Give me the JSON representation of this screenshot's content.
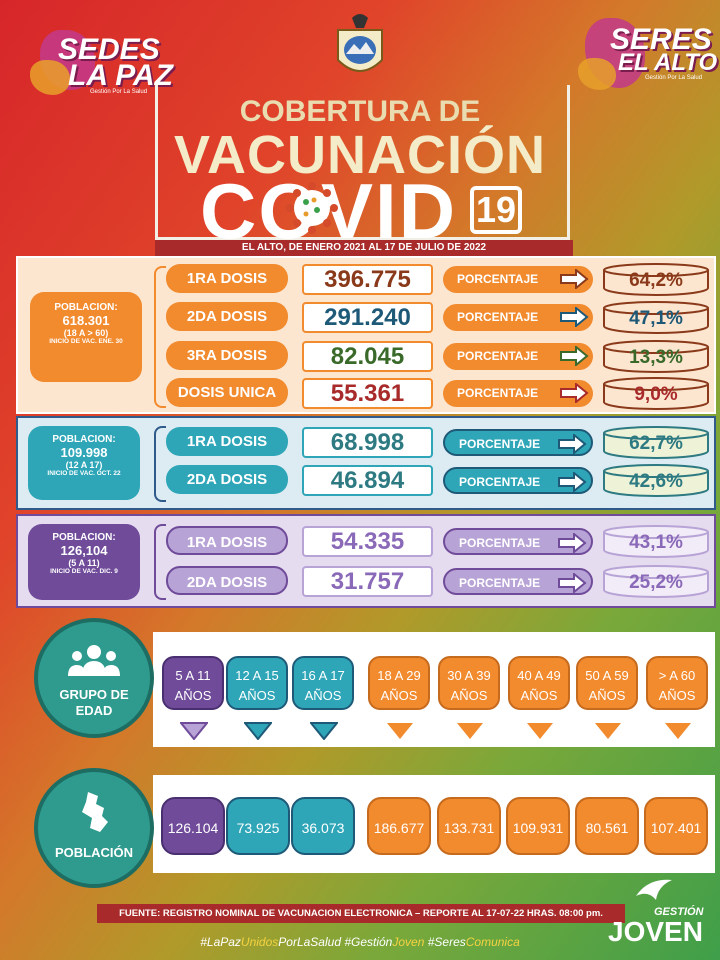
{
  "header": {
    "logo_left_line1": "SEDES",
    "logo_left_line2": "LA PAZ",
    "logo_left_sub": "Gestión Por La Salud",
    "logo_right_line1": "SERES",
    "logo_right_line2": "EL ALTO",
    "logo_right_sub": "Gestión Por La Salud"
  },
  "title": {
    "line1": "COBERTURA DE",
    "line2": "VACUNACIÓN",
    "line3": "COVID",
    "badge": "19",
    "subtitle": "EL ALTO, DE ENERO 2021 AL 17 DE JULIO DE 2022"
  },
  "groups": [
    {
      "pop_label": "POBLACION:",
      "pop_value": "618.301",
      "pop_range": "(18 A > 60)",
      "pop_start": "INICIO DE VAC. ENE. 30",
      "rows": [
        {
          "dose": "1RA DOSIS",
          "value": "396.775",
          "pct_label": "PORCENTAJE",
          "pct": "64,2%"
        },
        {
          "dose": "2DA DOSIS",
          "value": "291.240",
          "pct_label": "PORCENTAJE",
          "pct": "47,1%"
        },
        {
          "dose": "3RA DOSIS",
          "value": "82.045",
          "pct_label": "PORCENTAJE",
          "pct": "13,3%"
        },
        {
          "dose": "DOSIS UNICA",
          "value": "55.361",
          "pct_label": "PORCENTAJE",
          "pct": "9,0%"
        }
      ]
    },
    {
      "pop_label": "POBLACION:",
      "pop_value": "109.998",
      "pop_range": "(12 A 17)",
      "pop_start": "INICIO DE VAC. OCT. 22",
      "rows": [
        {
          "dose": "1RA DOSIS",
          "value": "68.998",
          "pct_label": "PORCENTAJE",
          "pct": "62,7%"
        },
        {
          "dose": "2DA DOSIS",
          "value": "46.894",
          "pct_label": "PORCENTAJE",
          "pct": "42,6%"
        }
      ]
    },
    {
      "pop_label": "POBLACION:",
      "pop_value": "126,104",
      "pop_range": "(5 A 11)",
      "pop_start": "INICIO DE VAC. DIC. 9",
      "rows": [
        {
          "dose": "1RA DOSIS",
          "value": "54.335",
          "pct_label": "PORCENTAJE",
          "pct": "43,1%"
        },
        {
          "dose": "2DA DOSIS",
          "value": "31.757",
          "pct_label": "PORCENTAJE",
          "pct": "25,2%"
        }
      ]
    }
  ],
  "age_groups": {
    "title_line1": "GRUPO DE",
    "title_line2": "EDAD",
    "items": [
      {
        "line1": "5 A 11",
        "line2": "AÑOS"
      },
      {
        "line1": "12 A 15",
        "line2": "AÑOS"
      },
      {
        "line1": "16 A 17",
        "line2": "AÑOS"
      },
      {
        "line1": "18 A 29",
        "line2": "AÑOS"
      },
      {
        "line1": "30 A 39",
        "line2": "AÑOS"
      },
      {
        "line1": "40 A 49",
        "line2": "AÑOS"
      },
      {
        "line1": "50 A 59",
        "line2": "AÑOS"
      },
      {
        "line1": "> A 60",
        "line2": "AÑOS"
      }
    ]
  },
  "population": {
    "title": "POBLACIÓN",
    "values": [
      "126.104",
      "73.925",
      "36.073",
      "186.677",
      "133.731",
      "109.931",
      "80.561",
      "107.401"
    ]
  },
  "footer": {
    "source": "FUENTE: REGISTRO NOMINAL DE VACUNACION ELECTRONICA – REPORTE AL 17-07-22 HRAS. 08:00 pm.",
    "hashtag_parts": [
      "#LaPaz",
      "Unidos",
      "PorLaSalud #Gestión",
      "Joven",
      " #Seres",
      "Comunica"
    ],
    "brand_line1": "GESTIÓN",
    "brand_line2": "JOVEN"
  },
  "colors": {
    "orange": "#f28a2e",
    "teal": "#2ea6b8",
    "purple": "#6f4b9a",
    "lavender": "#b8a3d6",
    "dark_red": "#a82a2a"
  }
}
